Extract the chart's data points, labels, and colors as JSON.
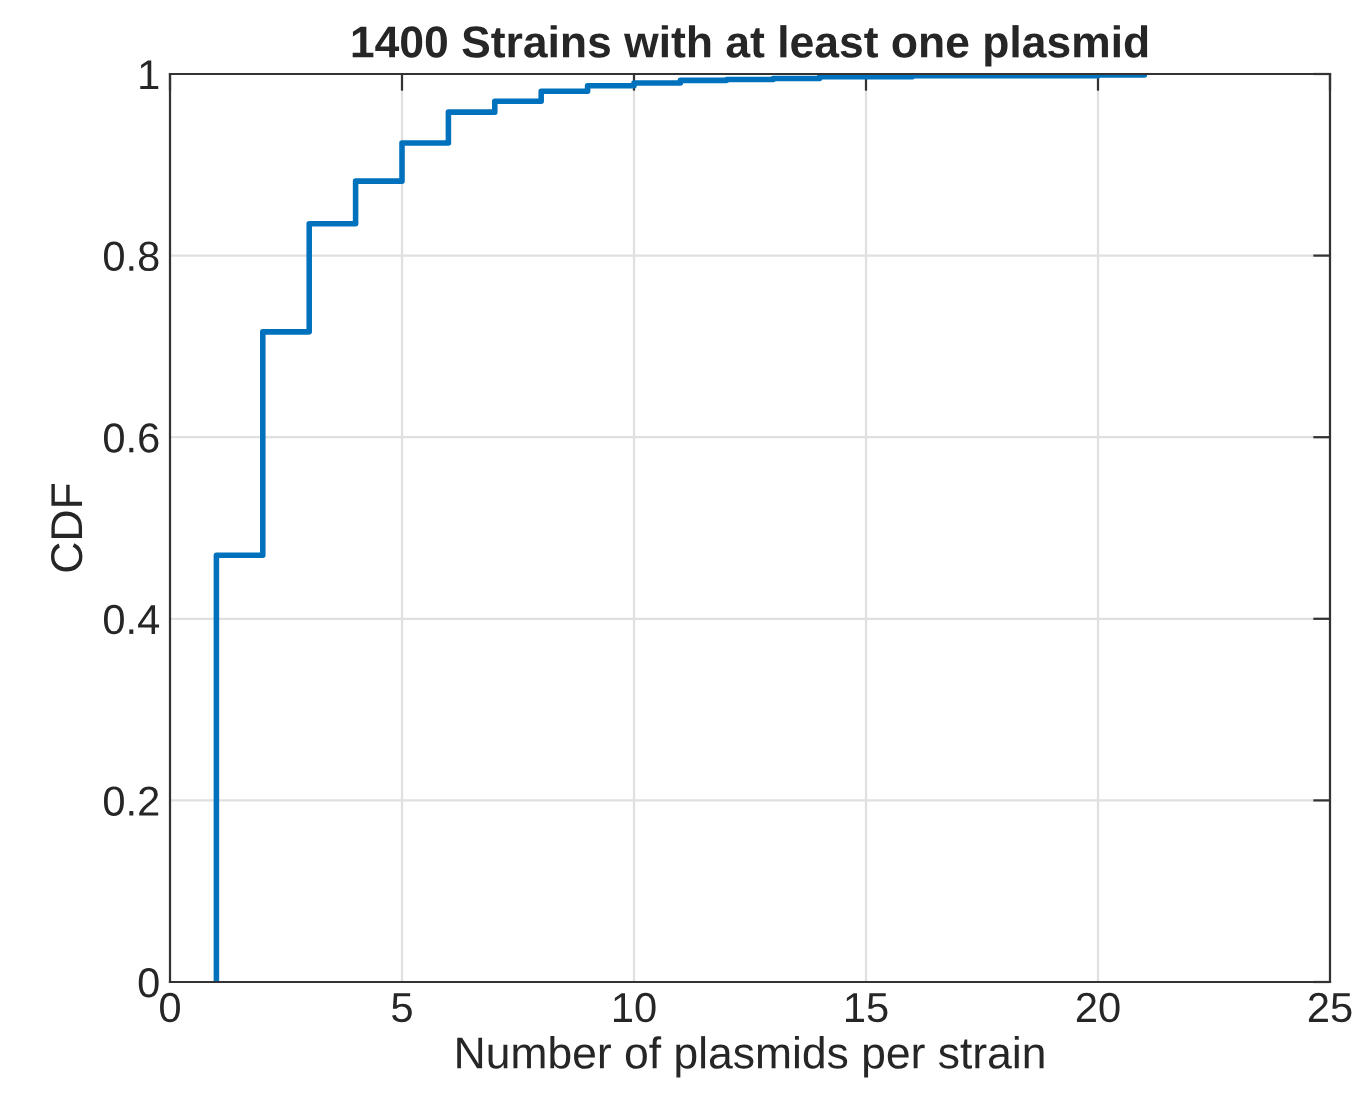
{
  "chart_data": {
    "type": "step",
    "title": "1400 Strains with at least one plasmid",
    "xlabel": "Number of plasmids per strain",
    "ylabel": "CDF",
    "x": [
      1,
      1,
      2,
      3,
      4,
      5,
      6,
      7,
      8,
      9,
      10,
      11,
      12,
      13,
      14,
      16,
      20,
      21
    ],
    "series": [
      {
        "color": "#0072bd",
        "values": [
          0,
          0.47,
          0.716,
          0.835,
          0.882,
          0.924,
          0.958,
          0.97,
          0.981,
          0.987,
          0.99,
          0.993,
          0.994,
          0.995,
          0.997,
          0.998,
          0.999,
          1
        ]
      }
    ],
    "xlim": [
      0,
      25
    ],
    "xticks": [
      0,
      5,
      10,
      15,
      20,
      25
    ],
    "ylim": [
      0,
      1
    ],
    "yticks": [
      0,
      0.2,
      0.4,
      0.6,
      0.8,
      1
    ],
    "grid": true
  }
}
